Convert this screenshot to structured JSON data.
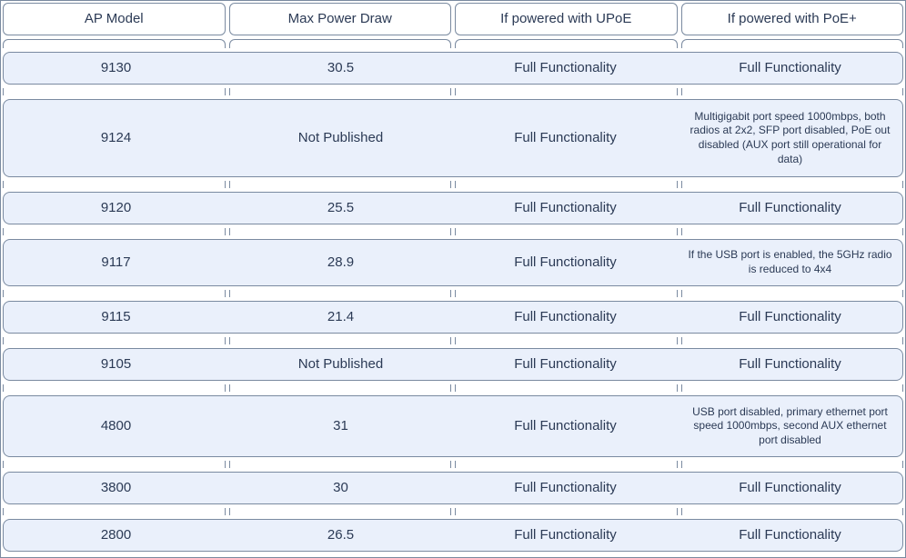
{
  "colors": {
    "border": "#7a8aa0",
    "row_bg": "#eaf0fb",
    "text": "#2b3a55",
    "page_bg": "#ffffff"
  },
  "columns": [
    "AP Model",
    "Max Power Draw",
    "If powered with UPoE",
    "If powered with PoE+"
  ],
  "rows": [
    {
      "model": "9130",
      "max_power": "30.5",
      "upoe": "Full Functionality",
      "poe_plus": "Full Functionality",
      "poe_plus_small": false,
      "height": "normal"
    },
    {
      "model": "9124",
      "max_power": "Not Published",
      "upoe": "Full Functionality",
      "poe_plus": "Multigigabit port speed 1000mbps, both radios at 2x2, SFP port disabled, PoE out disabled (AUX port still operational for data)",
      "poe_plus_small": true,
      "height": "tall"
    },
    {
      "model": "9120",
      "max_power": "25.5",
      "upoe": "Full Functionality",
      "poe_plus": "Full Functionality",
      "poe_plus_small": false,
      "height": "normal"
    },
    {
      "model": "9117",
      "max_power": "28.9",
      "upoe": "Full Functionality",
      "poe_plus": "If the USB port is enabled, the 5GHz radio is reduced to 4x4",
      "poe_plus_small": true,
      "height": "med"
    },
    {
      "model": "9115",
      "max_power": "21.4",
      "upoe": "Full Functionality",
      "poe_plus": "Full Functionality",
      "poe_plus_small": false,
      "height": "normal"
    },
    {
      "model": "9105",
      "max_power": "Not Published",
      "upoe": "Full Functionality",
      "poe_plus": "Full Functionality",
      "poe_plus_small": false,
      "height": "normal"
    },
    {
      "model": "4800",
      "max_power": "31",
      "upoe": "Full Functionality",
      "poe_plus": "USB port disabled, primary ethernet port speed 1000mbps, second AUX ethernet port disabled",
      "poe_plus_small": true,
      "height": "med2"
    },
    {
      "model": "3800",
      "max_power": "30",
      "upoe": "Full Functionality",
      "poe_plus": "Full Functionality",
      "poe_plus_small": false,
      "height": "normal"
    },
    {
      "model": "2800",
      "max_power": "26.5",
      "upoe": "Full Functionality",
      "poe_plus": "Full Functionality",
      "poe_plus_small": false,
      "height": "normal"
    }
  ]
}
